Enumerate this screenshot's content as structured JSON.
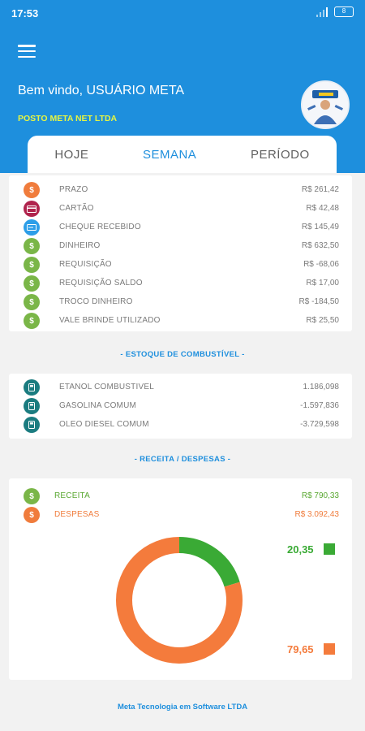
{
  "status": {
    "time": "17:53",
    "battery": "8"
  },
  "header": {
    "welcome": "Bem vindo, USUÁRIO META",
    "company": "POSTO META NET LTDA"
  },
  "tabs": [
    {
      "label": "HOJE"
    },
    {
      "label": "SEMANA"
    },
    {
      "label": "PERÍODO"
    }
  ],
  "payments": [
    {
      "label": "PRAZO",
      "value": "R$ 261,42",
      "icon": "money-bag-icon",
      "color": "#f07c3c"
    },
    {
      "label": "CARTÃO",
      "value": "R$ 42,48",
      "icon": "credit-card-icon",
      "color": "#b0234d"
    },
    {
      "label": "CHEQUE RECEBIDO",
      "value": "R$ 145,49",
      "icon": "check-icon",
      "color": "#2d9ee8"
    },
    {
      "label": "DINHEIRO",
      "value": "R$ 632,50",
      "icon": "money-bag-icon",
      "color": "#7ab648"
    },
    {
      "label": "REQUISIÇÃO",
      "value": "R$ -68,06",
      "icon": "money-bag-icon",
      "color": "#7ab648"
    },
    {
      "label": "REQUISIÇÃO SALDO",
      "value": "R$ 17,00",
      "icon": "money-bag-icon",
      "color": "#7ab648"
    },
    {
      "label": "TROCO DINHEIRO",
      "value": "R$ -184,50",
      "icon": "money-bag-icon",
      "color": "#7ab648"
    },
    {
      "label": "VALE BRINDE UTILIZADO",
      "value": "R$ 25,50",
      "icon": "money-bag-icon",
      "color": "#7ab648"
    }
  ],
  "stock_title": "- ESTOQUE DE COMBUSTÍVEL -",
  "stock": [
    {
      "label": "ETANOL COMBUSTIVEL",
      "value": "1.186,098",
      "icon": "fuel-pump-icon",
      "color": "#1b7c80"
    },
    {
      "label": "GASOLINA COMUM",
      "value": "-1.597,836",
      "icon": "fuel-pump-icon",
      "color": "#1b7c80"
    },
    {
      "label": "OLEO DIESEL COMUM",
      "value": "-3.729,598",
      "icon": "fuel-pump-icon",
      "color": "#1b7c80"
    }
  ],
  "revenue_title": "- RECEITA / DESPESAS -",
  "revenue": [
    {
      "label": "RECEITA",
      "value": "R$ 790,33",
      "icon": "money-bag-icon",
      "color": "#7ab648",
      "text_color": "#5aa832"
    },
    {
      "label": "DESPESAS",
      "value": "R$ 3.092,43",
      "icon": "money-bag-icon",
      "color": "#f07c3c",
      "text_color": "#f07c3c"
    }
  ],
  "chart_data": {
    "type": "pie",
    "series": [
      {
        "value": 20.35,
        "color": "#3aaa35",
        "label": "20,35"
      },
      {
        "value": 79.65,
        "color": "#f47b3c",
        "label": "79,65"
      }
    ]
  },
  "footer": "Meta Tecnologia em Software LTDA"
}
